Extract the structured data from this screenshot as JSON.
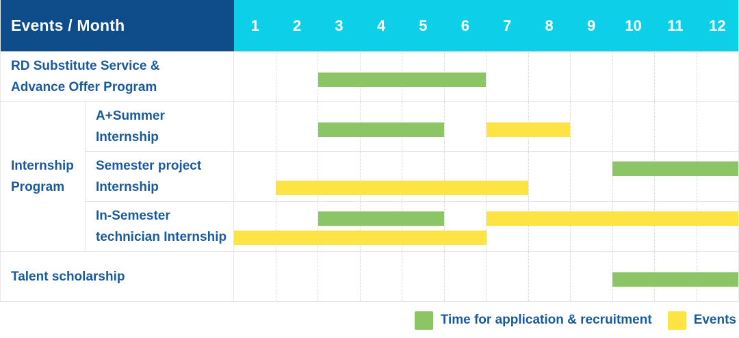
{
  "header": {
    "events_month_label": "Events / Month",
    "month_ticks": [
      "1",
      "2",
      "3",
      "4",
      "5",
      "6",
      "7",
      "8",
      "9",
      "10",
      "11",
      "12"
    ]
  },
  "colors": {
    "header_navy": "#0e4d89",
    "header_cyan": "#0dd0e8",
    "recruitment_green": "#8bc566",
    "events_yellow": "#fee344",
    "label_blue": "#1a5a9c"
  },
  "legend": {
    "items": [
      {
        "key": "application_recruitment",
        "label": "Time for application & recruitment",
        "color": "#8bc566"
      },
      {
        "key": "events",
        "label": "Events",
        "color": "#fee344"
      }
    ]
  },
  "chart_data": {
    "type": "gantt",
    "x_unit": "month",
    "x_range": [
      1,
      12
    ],
    "x_ticks": [
      "1",
      "2",
      "3",
      "4",
      "5",
      "6",
      "7",
      "8",
      "9",
      "10",
      "11",
      "12"
    ],
    "corner_label": "Events / Month",
    "bar_kinds": {
      "application_recruitment": {
        "label": "Time for application & recruitment",
        "color": "#8bc566"
      },
      "events": {
        "label": "Events",
        "color": "#fee344"
      }
    },
    "groups": [
      {
        "label_lines": [],
        "rows": [
          {
            "id": "rd-substitute-service",
            "label_lines": [
              "RD Substitute Service &",
              "Advance Offer Program"
            ],
            "lanes": [
              [
                {
                  "start_month": 3,
                  "end_month": 6,
                  "kind": "application_recruitment"
                }
              ]
            ]
          }
        ]
      },
      {
        "label_lines": [
          "Internship",
          "Program"
        ],
        "rows": [
          {
            "id": "a-plus-summer-internship",
            "label_lines": [
              "A+Summer",
              "Internship"
            ],
            "lanes": [
              [
                {
                  "start_month": 3,
                  "end_month": 5,
                  "kind": "application_recruitment"
                },
                {
                  "start_month": 7,
                  "end_month": 8,
                  "kind": "events"
                }
              ]
            ]
          },
          {
            "id": "semester-project-internship",
            "label_lines": [
              "Semester project",
              "Internship"
            ],
            "lanes": [
              [
                {
                  "start_month": 10,
                  "end_month": 12,
                  "kind": "application_recruitment"
                }
              ],
              [
                {
                  "start_month": 2,
                  "end_month": 7,
                  "kind": "events"
                }
              ]
            ]
          },
          {
            "id": "in-semester-technician-internship",
            "label_lines": [
              "In-Semester",
              "technician Internship"
            ],
            "lanes": [
              [
                {
                  "start_month": 3,
                  "end_month": 5,
                  "kind": "application_recruitment"
                },
                {
                  "start_month": 7,
                  "end_month": 12,
                  "kind": "events"
                }
              ],
              [
                {
                  "start_month": 1,
                  "end_month": 6,
                  "kind": "events"
                }
              ]
            ]
          }
        ]
      },
      {
        "label_lines": [],
        "rows": [
          {
            "id": "talent-scholarship",
            "label_lines": [
              "Talent scholarship"
            ],
            "lanes": [
              [
                {
                  "start_month": 10,
                  "end_month": 12,
                  "kind": "application_recruitment"
                }
              ]
            ]
          }
        ]
      }
    ]
  }
}
